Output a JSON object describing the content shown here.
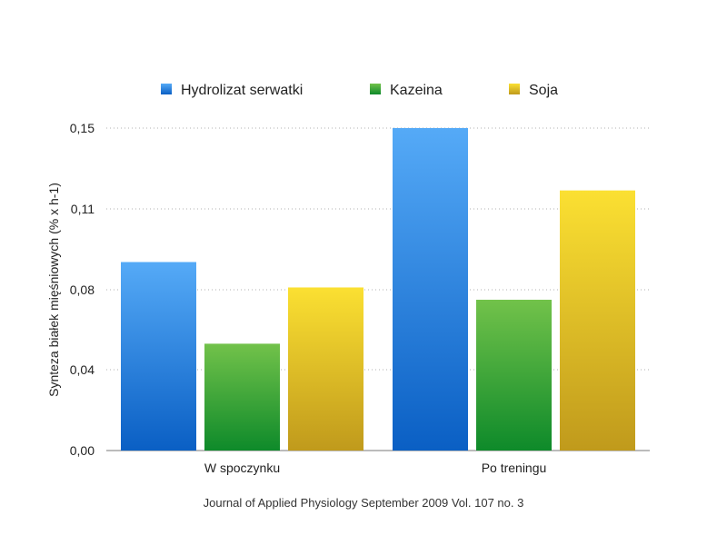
{
  "chart_data": {
    "type": "bar",
    "categories": [
      "W spoczynku",
      "Po treningu"
    ],
    "series": [
      {
        "name": "Hydrolizat serwatki",
        "values": [
          0.092,
          0.15
        ],
        "color_top": "#55aaf7",
        "color_bottom": "#0a5fc4"
      },
      {
        "name": "Kazeina",
        "values": [
          0.053,
          0.075
        ],
        "color_top": "#72c24a",
        "color_bottom": "#0e8a2a"
      },
      {
        "name": "Soja",
        "values": [
          0.081,
          0.123
        ],
        "color_top": "#fbe032",
        "color_bottom": "#c09a1c"
      }
    ],
    "yticks": [
      "0,00",
      "0,04",
      "0,08",
      "0,11",
      "0,15"
    ],
    "ylim": [
      0,
      0.16
    ],
    "ylabel": "Synteza białek mięśniowych (% x h-1)",
    "xlabel": "",
    "grid": true,
    "legend_position": "top",
    "source": "Journal of Applied Physiology September 2009 Vol. 107 no. 3"
  }
}
